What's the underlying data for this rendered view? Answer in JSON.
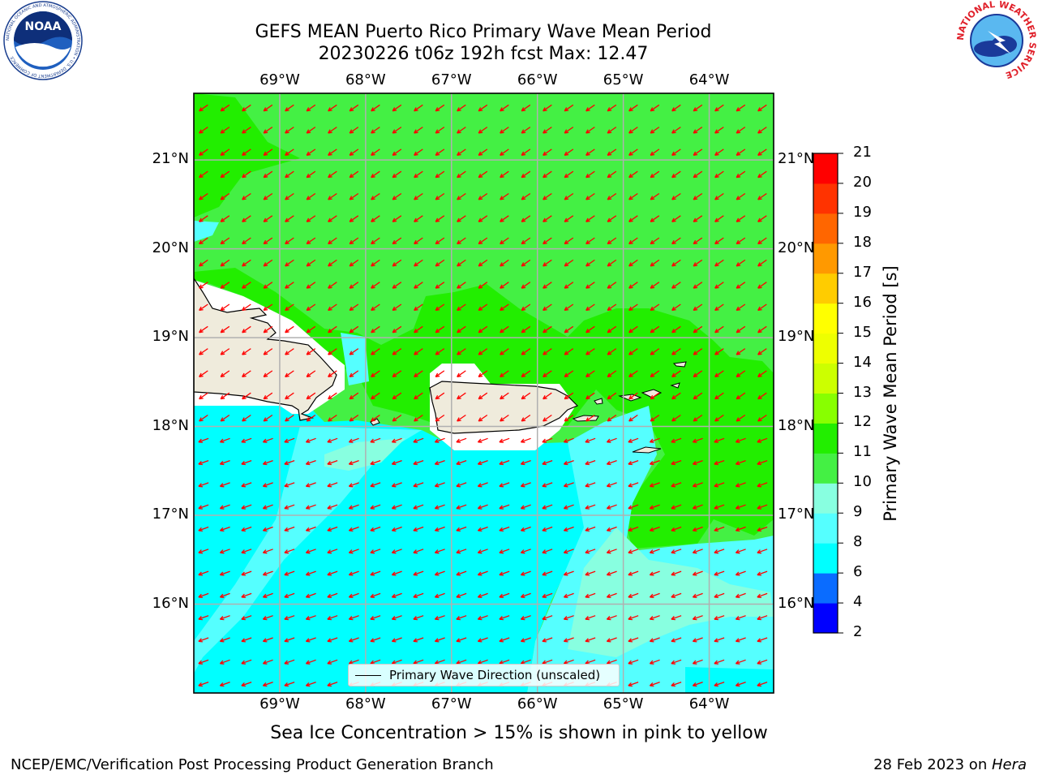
{
  "title": {
    "line1": "GEFS MEAN Puerto Rico Primary Wave Mean Period",
    "line2": "20230226 t06z 192h fcst   Max: 12.47"
  },
  "axes": {
    "lon_labels": [
      "69°W",
      "68°W",
      "67°W",
      "66°W",
      "65°W",
      "64°W"
    ],
    "lat_labels": [
      "21°N",
      "20°N",
      "19°N",
      "18°N",
      "17°N",
      "16°N"
    ],
    "lon_values": [
      -69,
      -68,
      -67,
      -66,
      -65,
      -64
    ],
    "lat_values": [
      21,
      20,
      19,
      18,
      17,
      16
    ],
    "lon_range": [
      -70.0,
      -63.25
    ],
    "lat_range": [
      15.0,
      21.75
    ]
  },
  "legend": {
    "label": "Primary Wave Direction (unscaled)"
  },
  "colorbar": {
    "title": "Primary Wave Mean Period [s]",
    "ticks": [
      "2",
      "4",
      "6",
      "8",
      "9",
      "10",
      "11",
      "12",
      "13",
      "14",
      "15",
      "16",
      "17",
      "18",
      "19",
      "20",
      "21"
    ],
    "colors": [
      "#0000ff",
      "#0a6cff",
      "#00ffff",
      "#55ffff",
      "#88ffe0",
      "#44f044",
      "#22ee00",
      "#88ff00",
      "#ccff00",
      "#eeff00",
      "#ffff00",
      "#ffcc00",
      "#ff9900",
      "#ff6600",
      "#ff3300",
      "#ff0000"
    ]
  },
  "map": {
    "arrow_color": "#ff0000",
    "land_color": "#efebdc",
    "period_zones": [
      {
        "range": "6-8",
        "color": "#00ffff"
      },
      {
        "range": "8-9",
        "color": "#55ffff"
      },
      {
        "range": "9-10",
        "color": "#88ffe0"
      },
      {
        "range": "10-11",
        "color": "#44f044"
      },
      {
        "range": "11-12",
        "color": "#22ee00"
      }
    ]
  },
  "note": "Sea Ice Concentration > 15% is shown in pink to yellow",
  "footer": {
    "left": "NCEP/EMC/Verification Post Processing Product Generation Branch",
    "right_prefix": "28 Feb 2023 on ",
    "right_host": "Hera"
  },
  "logos": {
    "noaa": {
      "text": "NOAA",
      "ring_text": "NATIONAL OCEANIC AND ATMOSPHERIC ADMINISTRATION • U.S. DEPARTMENT OF COMMERCE"
    },
    "nws": {
      "ring_text": "NATIONAL WEATHER SERVICE"
    }
  }
}
